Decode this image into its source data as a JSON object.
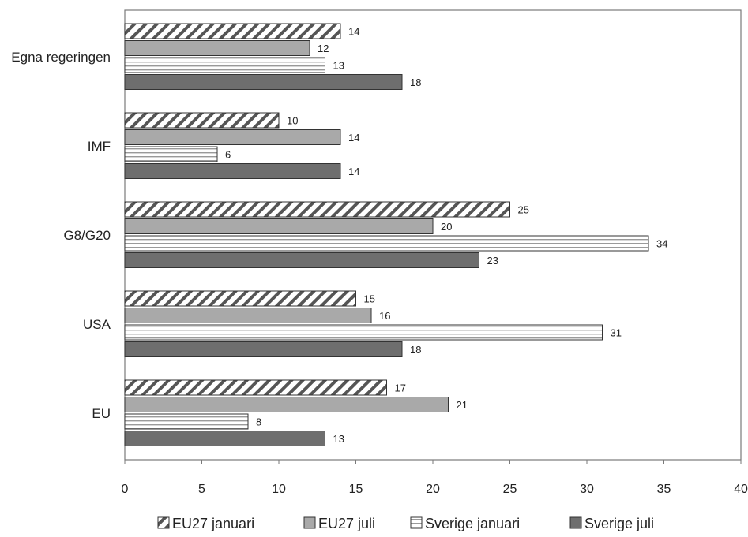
{
  "chart_data": {
    "type": "bar",
    "orientation": "horizontal",
    "categories": [
      "Egna regeringen",
      "IMF",
      "G8/G20",
      "USA",
      "EU"
    ],
    "series": [
      {
        "name": "EU27 januari",
        "values": [
          14,
          10,
          25,
          15,
          17
        ],
        "pattern": "hatch"
      },
      {
        "name": "EU27 juli",
        "values": [
          12,
          14,
          20,
          16,
          21
        ],
        "pattern": "solid-light"
      },
      {
        "name": "Sverige januari",
        "values": [
          13,
          6,
          34,
          31,
          8
        ],
        "pattern": "stripes"
      },
      {
        "name": "Sverige juli",
        "values": [
          18,
          14,
          23,
          18,
          13
        ],
        "pattern": "solid-dark"
      }
    ],
    "xlim": [
      0,
      40
    ],
    "xticks": [
      0,
      5,
      10,
      15,
      20,
      25,
      30,
      35,
      40
    ],
    "title": "",
    "xlabel": "",
    "ylabel": "",
    "grid": false,
    "legend_position": "bottom"
  },
  "colors": {
    "light_gray": "#a9a9a9",
    "dark_gray": "#6e6e6e",
    "outline": "#333333",
    "frame": "#7a7a7a"
  }
}
